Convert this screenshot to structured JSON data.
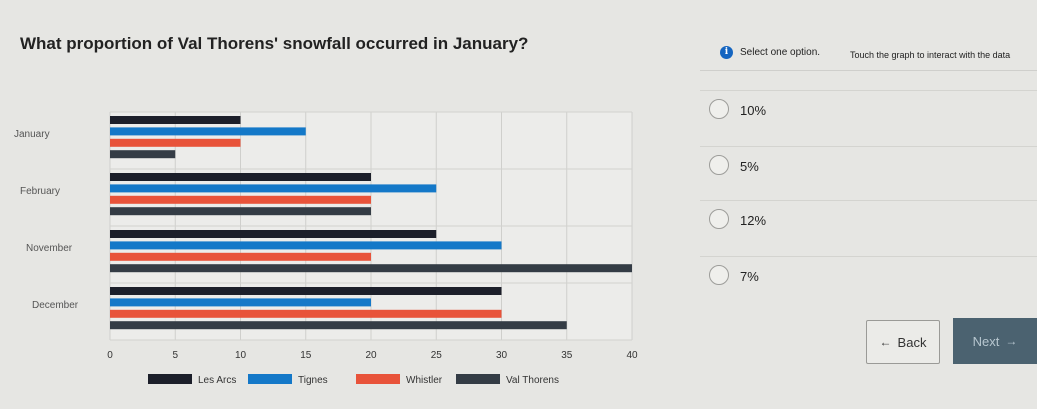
{
  "question": {
    "text": "What proportion of Val Thorens' snowfall occurred in January?",
    "instruction": "Select one option.",
    "touch_hint": "Touch the graph to interact with the data"
  },
  "options": [
    {
      "label": "10%"
    },
    {
      "label": "5%"
    },
    {
      "label": "12%"
    },
    {
      "label": "7%"
    }
  ],
  "nav": {
    "back_label": "Back",
    "next_label": "Next"
  },
  "colors": {
    "accent": "#1565c0",
    "next_bg": "#4b6270"
  },
  "chart_data": {
    "type": "bar",
    "orientation": "horizontal",
    "categories": [
      "January",
      "February",
      "November",
      "December"
    ],
    "series": [
      {
        "name": "Les Arcs",
        "color": "#1c1f2a",
        "values": [
          10,
          20,
          25,
          30
        ]
      },
      {
        "name": "Tignes",
        "color": "#1478c8",
        "values": [
          15,
          25,
          30,
          20
        ]
      },
      {
        "name": "Whistler",
        "color": "#e8533a",
        "values": [
          10,
          20,
          20,
          30
        ]
      },
      {
        "name": "Val Thorens",
        "color": "#343c45",
        "values": [
          5,
          20,
          40,
          35
        ]
      }
    ],
    "xticks": [
      0,
      5,
      10,
      15,
      20,
      25,
      30,
      35,
      40
    ],
    "xlim": [
      0,
      40
    ],
    "grid": true,
    "legend": "bottom"
  }
}
